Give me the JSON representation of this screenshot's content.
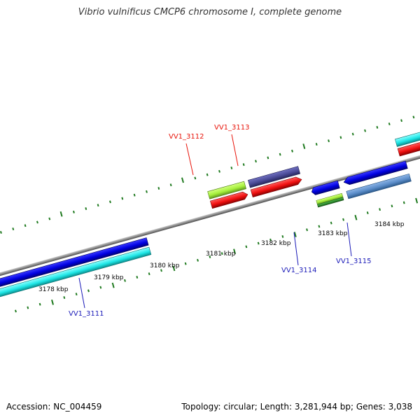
{
  "title": "Vibrio vulnificus CMCP6 chromosome I, complete genome",
  "footer": {
    "accession": "Accession: NC_004459",
    "summary": "Topology: circular; Length: 3,281,944 bp; Genes: 3,038"
  },
  "scale": {
    "tick_labels": [
      {
        "text": "3178 kbp"
      },
      {
        "text": "3179 kbp"
      },
      {
        "text": "3180 kbp"
      },
      {
        "text": "3181 kbp"
      },
      {
        "text": "3182 kbp"
      },
      {
        "text": "3183 kbp"
      },
      {
        "text": "3184 kbp"
      }
    ]
  },
  "gene_labels": [
    {
      "text": "VV1_3112",
      "color": "#e8140a"
    },
    {
      "text": "VV1_3113",
      "color": "#e8140a"
    },
    {
      "text": "VV1_3114",
      "color": "#1a1ab8"
    },
    {
      "text": "VV1_3115",
      "color": "#1a1ab8"
    },
    {
      "text": "VV1_3111",
      "color": "#1a1ab8"
    }
  ],
  "colors": {
    "backbone": "#8c8c8c",
    "tick": "#1f7a1f",
    "forward_cds": "#0000e6",
    "cyan_cds": "#1ee6e6",
    "red_cds": "#f01010",
    "lime_cds": "#a6f03c",
    "purple_cds": "#4a4a96",
    "steel_cds": "#5a8cc8",
    "green_cds": "#2e8b2e",
    "forward_label": "#1a1ab8",
    "reverse_label": "#e8140a"
  }
}
